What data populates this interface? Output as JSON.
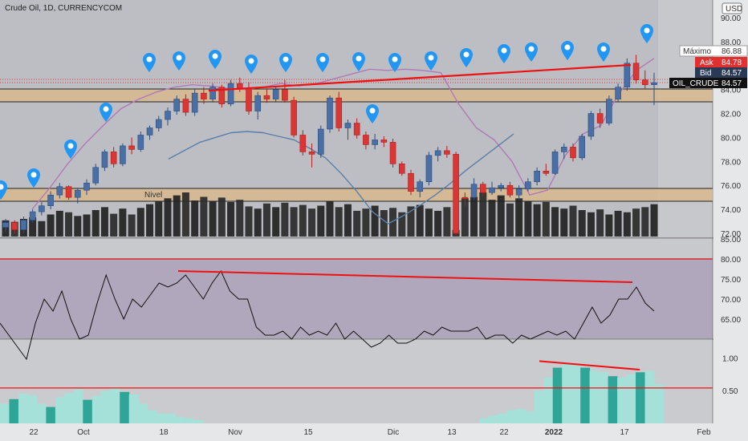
{
  "chart_title": "Crude Oil, 1D, CURRENCYCOM",
  "currency": "USD",
  "chart_data": [
    {
      "type": "candlestick",
      "title": "Crude Oil, 1D, CURRENCYCOM",
      "ylim": [
        72,
        91
      ],
      "y_ticks": [
        "90.00",
        "88.00",
        "86.00",
        "84.00",
        "82.00",
        "80.00",
        "78.00",
        "76.00",
        "74.00",
        "72.00"
      ],
      "x_ticks": [
        "22",
        "Oct",
        "18",
        "Nov",
        "15",
        "Dic",
        "13",
        "22",
        "2022",
        "17",
        "Feb"
      ],
      "price_labels": {
        "maximo_label": "Máximo",
        "maximo_value": "86.88",
        "ask_label": "Ask",
        "ask_value": "84.78",
        "bid_label": "Bid",
        "bid_value": "84.57",
        "symbol_label": "OIL_CRUDE",
        "symbol_value": "84.57"
      },
      "annotation_nivel": "Nivel",
      "candles": [
        [
          72.5,
          73.2,
          72.1,
          72.9
        ],
        [
          72.9,
          73.1,
          72.0,
          72.3
        ],
        [
          72.3,
          73.4,
          72.0,
          73.1
        ],
        [
          73.1,
          74.0,
          72.9,
          73.8
        ],
        [
          73.8,
          74.6,
          73.5,
          74.3
        ],
        [
          74.3,
          75.5,
          74.0,
          75.2
        ],
        [
          75.2,
          76.2,
          74.9,
          75.9
        ],
        [
          75.9,
          76.0,
          74.8,
          75.0
        ],
        [
          75.0,
          75.8,
          74.5,
          75.6
        ],
        [
          75.6,
          76.5,
          75.2,
          76.2
        ],
        [
          76.2,
          77.8,
          76.0,
          77.5
        ],
        [
          77.5,
          79.0,
          77.2,
          78.8
        ],
        [
          78.8,
          79.2,
          77.5,
          77.8
        ],
        [
          77.8,
          79.5,
          77.6,
          79.3
        ],
        [
          79.3,
          80.0,
          78.6,
          79.0
        ],
        [
          79.0,
          80.5,
          78.8,
          80.2
        ],
        [
          80.2,
          81.0,
          79.8,
          80.8
        ],
        [
          80.8,
          81.8,
          80.5,
          81.5
        ],
        [
          81.5,
          82.5,
          81.0,
          82.2
        ],
        [
          82.2,
          83.5,
          81.9,
          83.2
        ],
        [
          83.2,
          83.6,
          81.8,
          82.1
        ],
        [
          82.1,
          84.0,
          81.8,
          83.7
        ],
        [
          83.7,
          84.2,
          82.8,
          83.2
        ],
        [
          83.2,
          84.5,
          83.0,
          84.2
        ],
        [
          84.2,
          84.4,
          82.5,
          82.8
        ],
        [
          82.8,
          84.8,
          82.6,
          84.5
        ],
        [
          84.5,
          85.0,
          83.8,
          84.1
        ],
        [
          84.1,
          84.6,
          81.9,
          82.2
        ],
        [
          82.2,
          83.8,
          81.5,
          83.5
        ],
        [
          83.5,
          84.0,
          82.9,
          83.2
        ],
        [
          83.2,
          84.2,
          83.0,
          84.0
        ],
        [
          84.0,
          84.8,
          82.9,
          83.1
        ],
        [
          83.1,
          83.4,
          80.0,
          80.2
        ],
        [
          80.2,
          80.6,
          78.5,
          78.8
        ],
        [
          78.8,
          79.5,
          77.5,
          78.6
        ],
        [
          78.6,
          81.0,
          78.3,
          80.7
        ],
        [
          80.7,
          83.5,
          80.4,
          83.3
        ],
        [
          83.3,
          83.8,
          80.5,
          80.8
        ],
        [
          80.8,
          81.5,
          79.8,
          81.2
        ],
        [
          81.2,
          81.6,
          79.9,
          80.2
        ],
        [
          80.2,
          80.5,
          79.0,
          79.4
        ],
        [
          79.4,
          80.3,
          79.0,
          79.8
        ],
        [
          79.8,
          80.1,
          79.2,
          79.6
        ],
        [
          79.6,
          79.9,
          77.5,
          77.8
        ],
        [
          77.8,
          78.0,
          76.8,
          77.0
        ],
        [
          77.0,
          77.3,
          75.2,
          75.5
        ],
        [
          75.5,
          76.5,
          75.0,
          76.3
        ],
        [
          76.3,
          78.8,
          76.0,
          78.5
        ],
        [
          78.5,
          79.2,
          78.0,
          78.9
        ],
        [
          78.9,
          79.3,
          78.3,
          78.6
        ],
        [
          78.6,
          78.8,
          71.8,
          72.0
        ],
        [
          75.0,
          75.4,
          74.3,
          74.9
        ],
        [
          75.0,
          76.6,
          74.8,
          76.1
        ],
        [
          76.1,
          76.3,
          75.1,
          75.4
        ],
        [
          75.4,
          76.3,
          75.2,
          75.8
        ],
        [
          75.8,
          76.2,
          75.5,
          76.0
        ],
        [
          76.0,
          76.3,
          75.0,
          75.2
        ],
        [
          75.2,
          76.0,
          74.8,
          75.7
        ],
        [
          75.7,
          76.6,
          75.5,
          76.3
        ],
        [
          76.3,
          77.5,
          76.0,
          77.2
        ],
        [
          77.2,
          77.8,
          76.8,
          77.0
        ],
        [
          77.0,
          79.0,
          76.9,
          78.8
        ],
        [
          78.8,
          79.5,
          78.2,
          79.2
        ],
        [
          79.2,
          79.5,
          78.0,
          78.3
        ],
        [
          78.3,
          80.3,
          78.1,
          80.1
        ],
        [
          80.1,
          82.2,
          79.8,
          82.0
        ],
        [
          82.0,
          82.4,
          80.8,
          81.2
        ],
        [
          81.2,
          83.5,
          81.0,
          83.2
        ],
        [
          83.2,
          84.5,
          83.0,
          84.2
        ],
        [
          84.2,
          86.6,
          83.9,
          86.2
        ],
        [
          86.2,
          86.9,
          84.5,
          84.8
        ],
        [
          84.8,
          85.6,
          84.0,
          84.4
        ],
        [
          84.4,
          85.4,
          82.7,
          84.57
        ]
      ],
      "volume": [
        22,
        20,
        24,
        26,
        21,
        30,
        35,
        33,
        28,
        30,
        36,
        40,
        31,
        38,
        30,
        39,
        44,
        48,
        52,
        56,
        60,
        49,
        54,
        48,
        53,
        47,
        50,
        41,
        38,
        45,
        40,
        46,
        40,
        43,
        38,
        42,
        48,
        40,
        44,
        35,
        38,
        42,
        36,
        39,
        33,
        41,
        43,
        38,
        35,
        40,
        9,
        52,
        54,
        60,
        50,
        56,
        45,
        52,
        48,
        44,
        47,
        40,
        38,
        42,
        36,
        33,
        37,
        30,
        35,
        33,
        38,
        40,
        44
      ],
      "series": [
        {
          "values": [
            74.0,
            75.8,
            77.8,
            79.5,
            81.0,
            82.4,
            83.2,
            83.8,
            84.2,
            84.4,
            84.3,
            84.1,
            84.0,
            84.2,
            84.5,
            84.3,
            84.5,
            84.9,
            85.3,
            85.7,
            85.6,
            85.7,
            85.6,
            85.4,
            82.8,
            80.8,
            79.8,
            78.0,
            75.2,
            75.6,
            78.5,
            80.3,
            81.0,
            83.6,
            85.6,
            86.6
          ]
        },
        {
          "values": [
            78.2,
            78.9,
            79.6,
            80.0,
            80.4,
            80.5,
            80.4,
            80.1,
            79.8,
            79.1,
            78.3,
            77.0,
            75.5,
            73.8,
            72.8,
            73.5,
            74.3,
            75.2,
            76.2,
            77.3,
            78.3,
            79.3,
            80.3
          ]
        }
      ]
    },
    {
      "type": "line",
      "ylim": [
        60,
        85
      ],
      "y_ticks": [
        "85.00",
        "80.00",
        "75.00",
        "70.00",
        "65.00"
      ],
      "values": [
        64,
        61,
        58,
        55,
        64,
        70,
        67,
        72,
        65,
        60,
        61,
        69,
        76,
        70,
        65,
        70,
        68,
        71,
        74,
        73,
        74,
        76,
        73,
        70,
        74,
        77,
        72,
        70,
        70,
        63,
        61,
        61,
        62,
        60,
        63,
        61,
        62,
        61,
        64,
        60,
        62,
        60,
        58,
        59,
        61,
        59,
        59,
        60,
        62,
        61,
        63,
        62,
        62,
        62,
        63,
        60,
        61,
        61,
        59,
        61,
        60,
        61,
        62,
        61,
        62,
        60,
        64,
        68,
        64,
        66,
        70,
        70,
        73,
        69,
        67
      ],
      "lines": [
        {
          "values": [
            80.0,
            80.0
          ]
        },
        {
          "values": [
            77.0,
            74.2
          ]
        }
      ]
    },
    {
      "type": "area",
      "ylim": [
        0,
        1.2
      ],
      "y_ticks": [
        "1.00",
        "0.50"
      ],
      "values": [
        0.3,
        0.37,
        0.45,
        0.43,
        0.3,
        0.25,
        0.4,
        0.46,
        0.52,
        0.36,
        0.42,
        0.5,
        0.55,
        0.48,
        0.44,
        0.3,
        0.2,
        0.15,
        0.15,
        0.1,
        0.08,
        0.05,
        0,
        0,
        0,
        0,
        0,
        0,
        0,
        0,
        0,
        0,
        0,
        0,
        0,
        0,
        0,
        0,
        0,
        0,
        0,
        0,
        0,
        0,
        0,
        0,
        0,
        0,
        0,
        0,
        0,
        0,
        0.08,
        0.12,
        0.15,
        0.2,
        0.22,
        0.18,
        0.5,
        0.7,
        0.85,
        0.9,
        0.88,
        0.85,
        0.8,
        0.78,
        0.72,
        0.7,
        0.75,
        0.78,
        0.8,
        0.6
      ],
      "lines": [
        {
          "values": [
            0.54,
            0.54
          ]
        },
        {
          "values": [
            0.95,
            0.82
          ]
        }
      ]
    }
  ]
}
